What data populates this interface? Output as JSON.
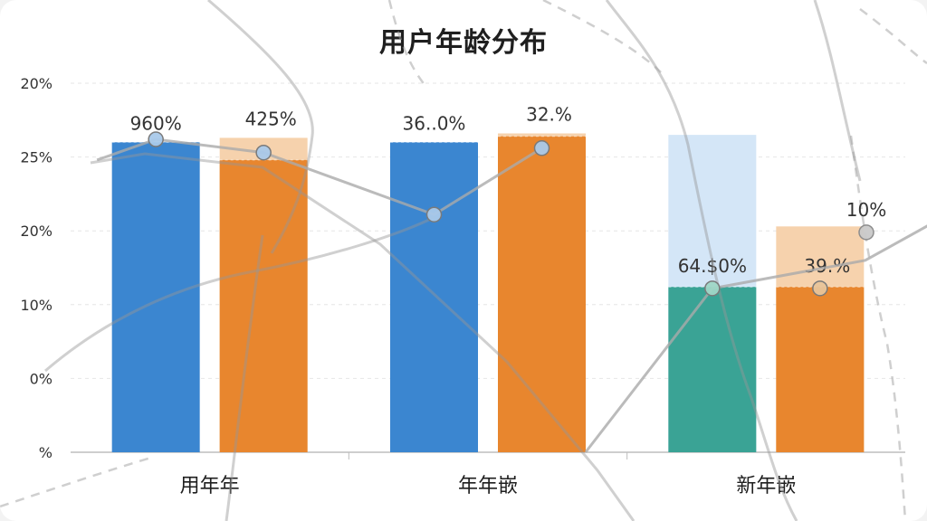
{
  "chart_data": {
    "type": "bar",
    "title": "用户年龄分布",
    "xlabel": "",
    "ylabel": "",
    "y_tick_labels": [
      "20%",
      "25%",
      "20%",
      "10%",
      "0%",
      "%"
    ],
    "ylim": [
      0,
      25
    ],
    "grid": true,
    "categories": [
      "用年年",
      "年年嵌",
      "新年嵌"
    ],
    "series": [
      {
        "values": [
          21,
          21,
          11.2
        ],
        "faded_values": [
          null,
          null,
          21.5
        ],
        "colors": [
          "#3b86d0",
          "#3b86d0",
          "#3aa395"
        ],
        "faded_color": "#d4e6f7",
        "labels": [
          "960%",
          "36..0%",
          "64.$0%"
        ]
      },
      {
        "values": [
          19.8,
          21.4,
          11.2
        ],
        "faded_values": [
          21.3,
          21.6,
          15.3
        ],
        "colors": [
          "#e8862e",
          "#e8862e",
          "#e8862e"
        ],
        "faded_color": "#f6d2ad",
        "labels": [
          "425%",
          "32.%",
          "39.%"
        ]
      }
    ],
    "lines": [
      {
        "color": "#a9c9ea",
        "points": [
          [
            0,
            0,
            21.2
          ],
          [
            0,
            1,
            20.3
          ],
          [
            1,
            0,
            16.1
          ],
          [
            1,
            1,
            20.6
          ]
        ]
      },
      {
        "color": "#9fd6c6",
        "points": [
          [
            2,
            0,
            11.1
          ]
        ],
        "tail": [
          [
            2,
            1,
            13.0
          ],
          [
            3,
            1,
            18.1
          ]
        ]
      },
      {
        "color": "#e8c49a",
        "points": [
          [
            2,
            1,
            11.1
          ]
        ]
      },
      {
        "color": "#c9c9c9",
        "points": [
          [
            3,
            1,
            14.9
          ]
        ],
        "label": "10%"
      }
    ]
  }
}
